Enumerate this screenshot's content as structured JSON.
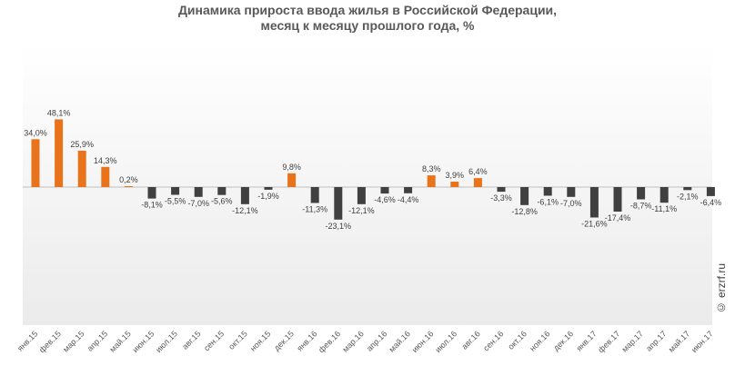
{
  "title_line1": "Динамика прироста ввода жилья в Российской Федерации,",
  "title_line2": "месяц к месяцу прошлого года, %",
  "watermark": "© erzrf.ru",
  "colors": {
    "positive": "#E8731A",
    "negative": "#404040",
    "label": "#404040",
    "axis_label": "#595959",
    "plot_bg_top": "#ffffff",
    "plot_bg_bottom": "#ebebeb",
    "zero_line": "#bfbfbf"
  },
  "chart_data": {
    "type": "bar",
    "title": "Динамика прироста ввода жилья в Российской Федерации, месяц к месяцу прошлого года, %",
    "categories": [
      "янв.15",
      "фев.15",
      "мар.15",
      "апр.15",
      "май.15",
      "июн.15",
      "июл.15",
      "авг.15",
      "сен.15",
      "окт.15",
      "ноя.15",
      "дек.15",
      "янв.16",
      "фев.16",
      "мар.16",
      "апр.16",
      "май.16",
      "июн.16",
      "июл.16",
      "авг.16",
      "сен.16",
      "окт.16",
      "ноя.16",
      "дек.16",
      "янв.17",
      "фев.17",
      "мар.17",
      "апр.17",
      "май.17",
      "июн.17"
    ],
    "values": [
      34.0,
      48.1,
      25.9,
      14.3,
      0.2,
      -8.1,
      -5.5,
      -7.0,
      -5.6,
      -12.1,
      -1.9,
      9.8,
      -11.3,
      -23.1,
      -12.1,
      -4.6,
      -4.4,
      8.3,
      3.9,
      6.4,
      -3.3,
      -12.8,
      -6.1,
      -7.0,
      -21.6,
      -17.4,
      -8.7,
      -11.1,
      -2.1,
      -6.4
    ],
    "labels": [
      "34,0%",
      "48,1%",
      "25,9%",
      "14,3%",
      "0,2%",
      "-8,1%",
      "-5,5%",
      "-7,0%",
      "-5,6%",
      "-12,1%",
      "-1,9%",
      "9,8%",
      "-11,3%",
      "-23,1%",
      "-12,1%",
      "-4,6%",
      "-4,4%",
      "8,3%",
      "3,9%",
      "6,4%",
      "-3,3%",
      "-12,8%",
      "-6,1%",
      "-7,0%",
      "-21,6%",
      "-17,4%",
      "-8,7%",
      "-11,1%",
      "-2,1%",
      "-6,4%"
    ],
    "ylim": [
      -100,
      100
    ],
    "grid": false
  }
}
